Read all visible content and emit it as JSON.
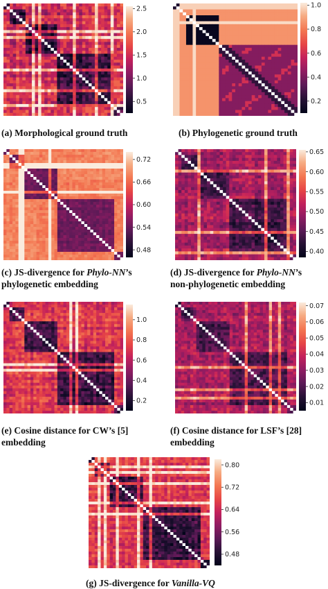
{
  "panels": [
    {
      "id": "a",
      "caption": "(a) Morphological ground truth",
      "colorbar_ticks": [
        "2.5",
        "2.0",
        "1.5",
        "1.0",
        "0.5"
      ],
      "vmin": 0.25,
      "vmax": 2.55,
      "style": "morph"
    },
    {
      "id": "b",
      "caption": "(b) Phylogenetic ground truth",
      "colorbar_ticks": [
        "1.0",
        "0.8",
        "0.6",
        "0.4",
        "0.2"
      ],
      "vmin": 0.1,
      "vmax": 1.02,
      "style": "phylo"
    },
    {
      "id": "c",
      "caption_lines": [
        "(c) JS-divergence for Phylo-NN’s",
        "phylogenetic embedding"
      ],
      "colorbar_ticks": [
        "0.72",
        "0.66",
        "0.60",
        "0.54",
        "0.48"
      ],
      "vmin": 0.46,
      "vmax": 0.74,
      "style": "light"
    },
    {
      "id": "d",
      "caption_lines": [
        "(d) JS-divergence for Phylo-NN’s",
        "non-phylogenetic embedding"
      ],
      "colorbar_ticks": [
        "0.65",
        "0.60",
        "0.55",
        "0.50",
        "0.45",
        "0.40"
      ],
      "vmin": 0.385,
      "vmax": 0.655,
      "style": "dark"
    },
    {
      "id": "e",
      "caption_lines": [
        "(e) Cosine distance for CW’s [5]",
        "embedding"
      ],
      "colorbar_ticks": [
        "1.0",
        "0.8",
        "0.6",
        "0.4",
        "0.2"
      ],
      "vmin": 0.1,
      "vmax": 1.15,
      "style": "mid"
    },
    {
      "id": "f",
      "caption_lines": [
        "(f) Cosine distance for LSF’s [28]",
        "embedding"
      ],
      "colorbar_ticks": [
        "0.07",
        "0.06",
        "0.05",
        "0.04",
        "0.03",
        "0.02",
        "0.01"
      ],
      "vmin": 0.005,
      "vmax": 0.072,
      "style": "dark"
    },
    {
      "id": "g",
      "caption": "(g) JS-divergence for Vanilla-VQ",
      "colorbar_ticks": [
        "0.80",
        "0.72",
        "0.64",
        "0.56",
        "0.48"
      ],
      "vmin": 0.44,
      "vmax": 0.82,
      "style": "mid"
    }
  ]
}
